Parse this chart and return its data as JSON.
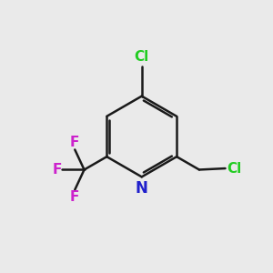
{
  "background_color": "#eaeaea",
  "bond_color": "#1a1a1a",
  "bond_width": 1.8,
  "figsize": [
    3.0,
    3.0
  ],
  "dpi": 100,
  "colors": {
    "N": "#2020cc",
    "Cl": "#22cc22",
    "F": "#cc22cc",
    "C": "#1a1a1a"
  },
  "font": {
    "N_size": 12,
    "Cl_size": 11,
    "F_size": 11,
    "weight": "bold"
  }
}
